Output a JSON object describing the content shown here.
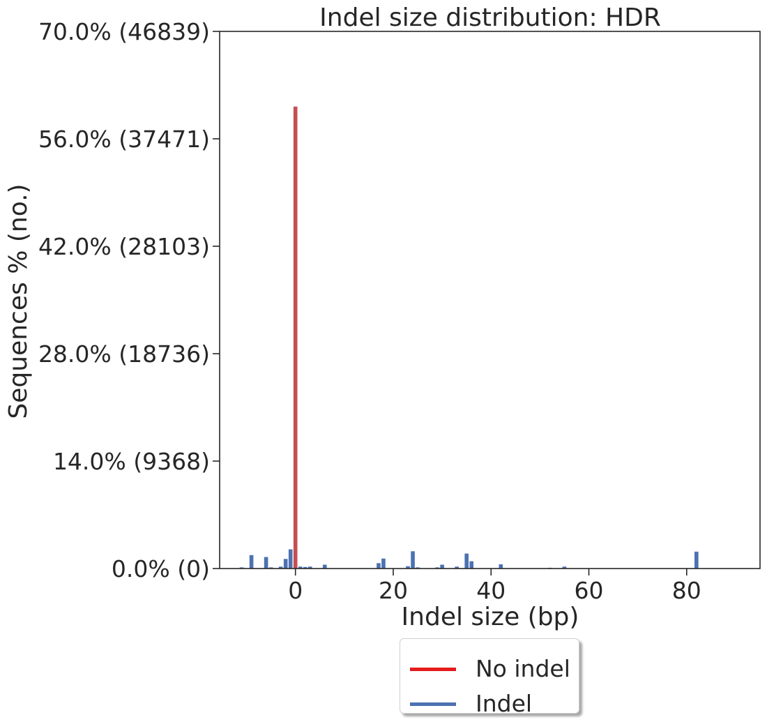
{
  "chart_data": {
    "type": "bar",
    "title": "Indel size distribution: HDR",
    "xlabel": "Indel size (bp)",
    "ylabel": "Sequences % (no.)",
    "xlim": [
      -15.5,
      95
    ],
    "ylim": [
      0,
      70
    ],
    "x_ticks": [
      {
        "value": 0,
        "label": "0"
      },
      {
        "value": 20,
        "label": "20"
      },
      {
        "value": 40,
        "label": "40"
      },
      {
        "value": 60,
        "label": "60"
      },
      {
        "value": 80,
        "label": "80"
      }
    ],
    "y_ticks": [
      {
        "value": 0,
        "label": "0.0% (0)"
      },
      {
        "value": 14,
        "label": "14.0% (9368)"
      },
      {
        "value": 28,
        "label": "28.0% (18736)"
      },
      {
        "value": 42,
        "label": "42.0% (28103)"
      },
      {
        "value": 56,
        "label": "56.0% (37471)"
      },
      {
        "value": 70,
        "label": "70.0% (46839)"
      }
    ],
    "series": [
      {
        "name": "No indel",
        "color": "#c44e52",
        "x": [
          0
        ],
        "values": [
          60.2
        ]
      },
      {
        "name": "Indel",
        "color": "#4c72b0",
        "x": [
          -11,
          -9,
          -6,
          -5,
          -3,
          -2,
          -1,
          1,
          2,
          3,
          6,
          17,
          18,
          23,
          24,
          25,
          29,
          30,
          33,
          35,
          36,
          42,
          52,
          55,
          82
        ],
        "values": [
          0.15,
          1.75,
          1.5,
          0.15,
          0.25,
          1.25,
          2.5,
          0.25,
          0.2,
          0.25,
          0.5,
          0.7,
          1.3,
          0.3,
          2.25,
          0.15,
          0.15,
          0.5,
          0.25,
          1.95,
          0.95,
          0.55,
          0.1,
          0.25,
          2.2
        ]
      }
    ],
    "legend": {
      "placement": "bottom-center",
      "entries": [
        {
          "label": "No indel",
          "color": "#e41a1c"
        },
        {
          "label": "Indel",
          "color": "#4c72b0"
        }
      ]
    },
    "grid": false
  }
}
